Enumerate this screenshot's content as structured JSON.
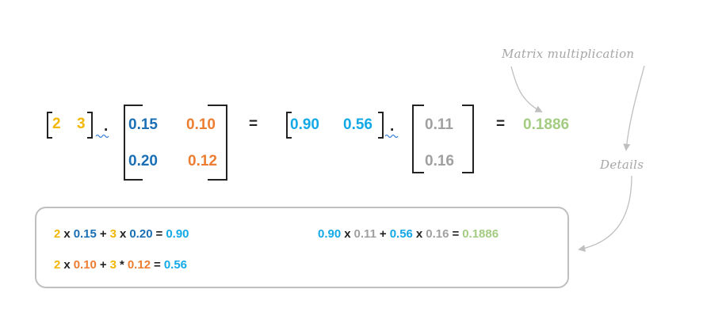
{
  "annotations": {
    "matrix_multiplication": "Matrix multiplication",
    "details": "Details"
  },
  "row_vector_1": [
    "2",
    "3"
  ],
  "matrix_1": [
    [
      "0.15",
      "0.10"
    ],
    [
      "0.20",
      "0.12"
    ]
  ],
  "row_vector_2": [
    "0.90",
    "0.56"
  ],
  "column_vector": [
    "0.11",
    "0.16"
  ],
  "operators": {
    "dot": ".",
    "equals": "=",
    "times": "x",
    "plus": "+",
    "star": "*"
  },
  "result": "0.1886",
  "details": {
    "line1": [
      "2",
      "x",
      "0.15",
      "+",
      "3",
      "x",
      "0.20",
      "=",
      "0.90"
    ],
    "line2": [
      "2",
      "x",
      "0.10",
      "+",
      "3",
      "*",
      "0.12",
      "=",
      "0.56"
    ],
    "line3": [
      "0.90",
      "x",
      "0.11",
      "+",
      "0.56",
      "x",
      "0.16",
      "=",
      "0.1886"
    ]
  },
  "colors": {
    "yellow": "#F2B705",
    "blue": "#1A6FB5",
    "orange": "#ED7D31",
    "cyan": "#12A9E6",
    "grey": "#A0A0A0",
    "green": "#A3CC82",
    "bracket": "#222222",
    "arrow": "#BFBFBF"
  }
}
